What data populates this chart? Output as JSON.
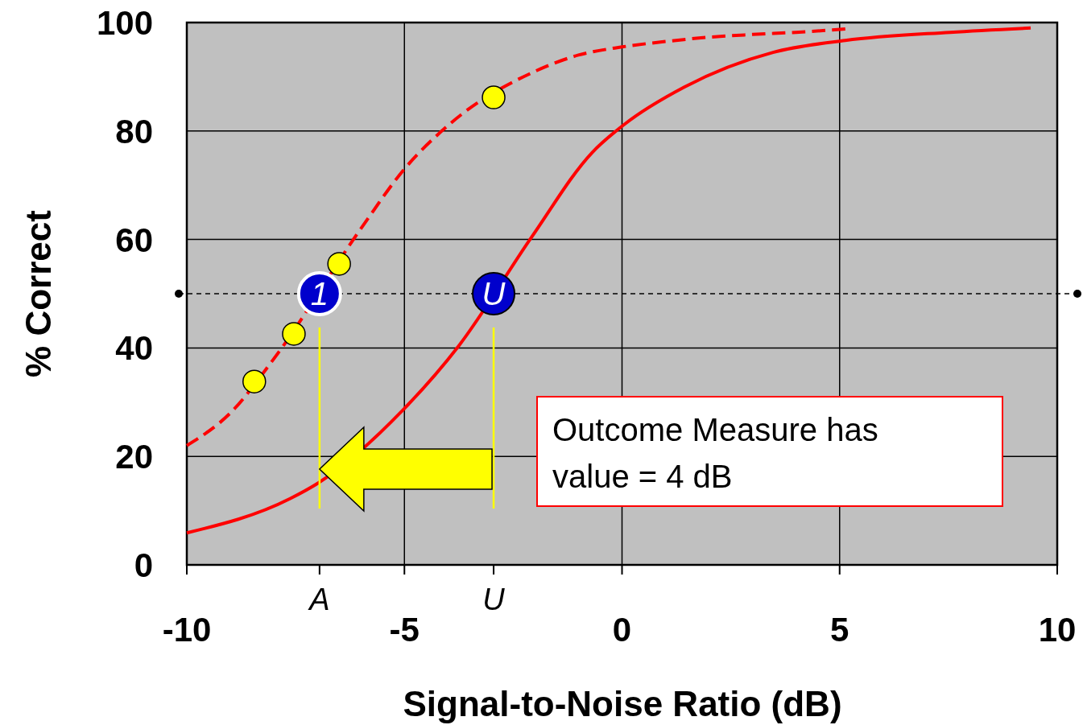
{
  "chart_data": {
    "type": "line",
    "xlabel": "Signal-to-Noise Ratio (dB)",
    "ylabel": "% Correct",
    "xlim": [
      -10,
      10
    ],
    "xticks": [
      -10,
      -5,
      0,
      5,
      10
    ],
    "ylim": [
      0,
      100
    ],
    "yticks": [
      0,
      20,
      40,
      60,
      80,
      100
    ],
    "grid": true,
    "series": [
      {
        "color": "#ff0000",
        "line_style": "dashed",
        "x": [
          -10,
          -9,
          -8,
          -6,
          -5,
          -4,
          -2,
          -1,
          0,
          1,
          2,
          3,
          4,
          5.13
        ],
        "values": [
          22,
          28,
          38,
          62,
          73,
          81,
          91,
          94,
          95.5,
          96.5,
          97.3,
          97.8,
          98.2,
          98.8
        ]
      },
      {
        "color": "#ff0000",
        "line_style": "solid",
        "x": [
          -10,
          -7.63,
          -6.98,
          -5.04,
          -3.75,
          -2.08,
          -0.69,
          0.05,
          1.43,
          3.47,
          5.13,
          7.54,
          9.39
        ],
        "values": [
          5.9,
          12.2,
          15.1,
          28.5,
          40.4,
          60.4,
          76,
          81.2,
          88.1,
          94.5,
          96.7,
          98.2,
          99
        ]
      },
      {
        "type": "scatter",
        "color": "#ffff00",
        "marker": "circle",
        "x": [
          -8.45,
          -7.54,
          -6.5,
          -2.95
        ],
        "values": [
          33.8,
          42.6,
          55.5,
          86.2
        ]
      }
    ],
    "ref_lines": [
      {
        "axis": "y",
        "value": 50,
        "color": "#000000",
        "line_style": "dashed"
      }
    ],
    "annotations": [
      "Outcome Measure has value = 4 dB",
      "A",
      "U",
      {
        "text": "1",
        "x": -6.95,
        "y": 50
      },
      {
        "text": "U",
        "x": -2.95,
        "y": 50
      }
    ]
  }
}
